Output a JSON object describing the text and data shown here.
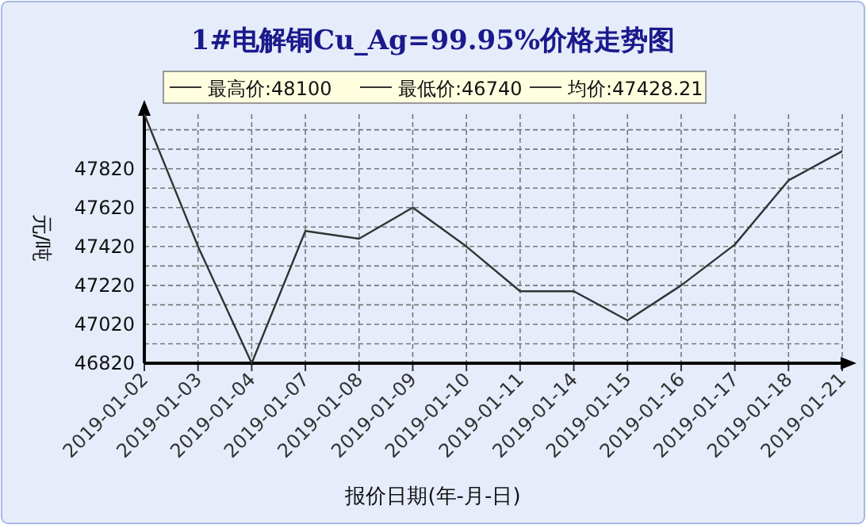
{
  "chart_data": {
    "type": "line",
    "title": "1#电解铜Cu_Ag=99.95%价格走势图",
    "xlabel": "报价日期(年-月-日)",
    "ylabel": "元/吨",
    "annotations": [
      "最高价:48100",
      "最低价:46740",
      "均价:47428.21"
    ],
    "categories": [
      "2019-01-02",
      "2019-01-03",
      "2019-01-04",
      "2019-01-07",
      "2019-01-08",
      "2019-01-09",
      "2019-01-10",
      "2019-01-11",
      "2019-01-14",
      "2019-01-15",
      "2019-01-16",
      "2019-01-17",
      "2019-01-18",
      "2019-01-21"
    ],
    "series": [
      {
        "color": "#333333",
        "values": [
          48100,
          47420,
          46820,
          47500,
          47460,
          47620,
          47420,
          47190,
          47190,
          47040,
          47220,
          47430,
          47760,
          47910
        ]
      }
    ],
    "ylim": [
      46820,
      48100
    ],
    "yticks": [
      46820,
      {
        "value": 46920,
        "label": null
      },
      47020,
      {
        "value": 47120,
        "label": null
      },
      47220,
      {
        "value": 47320,
        "label": null
      },
      47420,
      {
        "value": 47520,
        "label": null
      },
      47620,
      {
        "value": 47720,
        "label": null
      },
      47820,
      {
        "value": 47920,
        "label": null
      },
      {
        "value": 48020,
        "label": null
      }
    ],
    "grid": true,
    "marker": "none",
    "line_style": "solid"
  }
}
